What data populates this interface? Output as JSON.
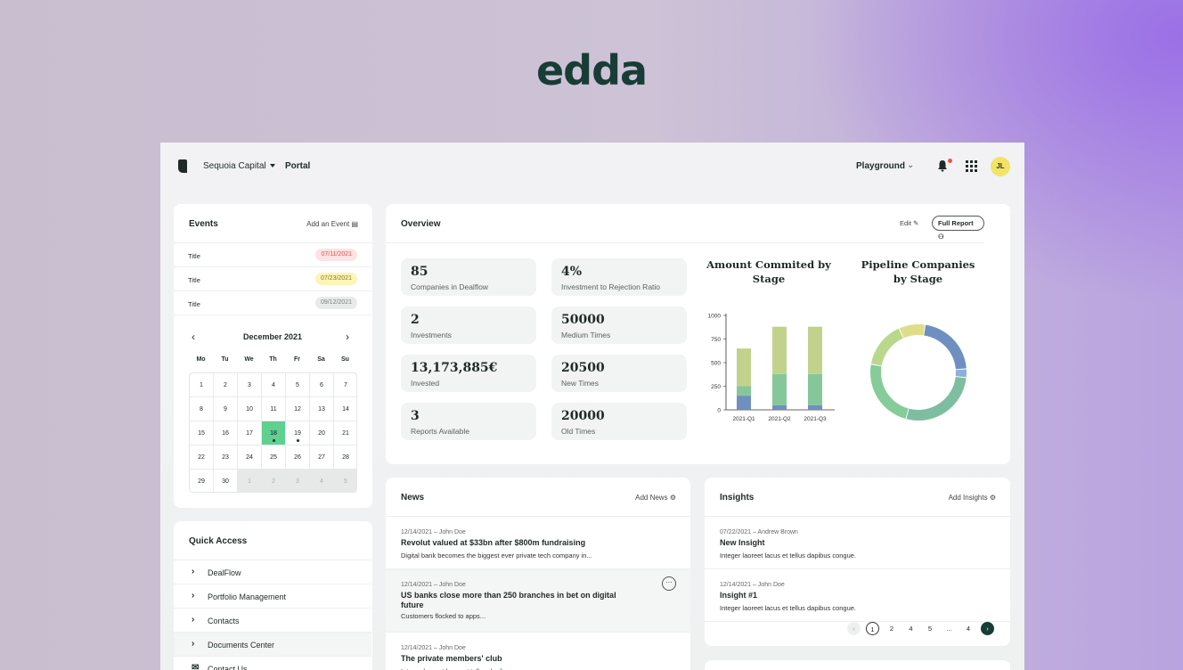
{
  "brand": "edda",
  "topbar": {
    "org": "Sequoia Capital",
    "portal": "Portal",
    "workspace": "Playground",
    "avatar": "JL"
  },
  "events": {
    "title": "Events",
    "add_label": "Add an Event",
    "items": [
      {
        "title": "Title",
        "date": "07/11/2021",
        "color": "#fde3e3",
        "text_color": "#d9534f"
      },
      {
        "title": "Title",
        "date": "07/23/2021",
        "color": "#fbf5b8",
        "text_color": "#8a7a12"
      },
      {
        "title": "Title",
        "date": "09/12/2021",
        "color": "#e8ebea",
        "text_color": "#7b8380"
      }
    ],
    "calendar": {
      "month": "December 2021",
      "weekdays": [
        "Mo",
        "Tu",
        "We",
        "Th",
        "Fr",
        "Sa",
        "Su"
      ],
      "weeks": [
        [
          "1",
          "2",
          "3",
          "4",
          "5",
          "6",
          "7"
        ],
        [
          "8",
          "9",
          "10",
          "11",
          "12",
          "13",
          "14"
        ],
        [
          "15",
          "16",
          "17",
          "18",
          "19",
          "20",
          "21"
        ],
        [
          "22",
          "23",
          "24",
          "25",
          "26",
          "27",
          "28"
        ],
        [
          "29",
          "30",
          "1",
          "2",
          "3",
          "4",
          "5"
        ]
      ],
      "selected": "18"
    }
  },
  "quick_access": {
    "title": "Quick Access",
    "items": [
      "DealFlow",
      "Portfolio Management",
      "Contacts",
      "Documents Center",
      "Contact Us"
    ]
  },
  "overview": {
    "title": "Overview",
    "edit_label": "Edit",
    "report_label": "Full Report",
    "stats": [
      {
        "value": "85",
        "label": "Companies in Dealflow"
      },
      {
        "value": "2",
        "label": "Investments"
      },
      {
        "value": "13,173,885€",
        "label": "Invested"
      },
      {
        "value": "3",
        "label": "Reports Available"
      },
      {
        "value": "4%",
        "label": "Investment to Rejection Ratio"
      },
      {
        "value": "50000",
        "label": "Medium Times"
      },
      {
        "value": "20500",
        "label": "New Times"
      },
      {
        "value": "20000",
        "label": "Old Times"
      }
    ]
  },
  "chart_data": [
    {
      "type": "bar",
      "title": "Amount Commited by Stage",
      "categories": [
        "2021-Q1",
        "2021-Q2",
        "2021-Q3"
      ],
      "stacked": true,
      "ylim": [
        0,
        1000
      ],
      "yticks": [
        0,
        250,
        500,
        750,
        1000
      ],
      "series": [
        {
          "values": [
            150,
            50,
            50
          ],
          "color": "#6f8fc0"
        },
        {
          "values": [
            100,
            330,
            330
          ],
          "color": "#86c79a"
        },
        {
          "values": [
            400,
            500,
            500
          ],
          "color": "#c2d28c"
        }
      ]
    },
    {
      "type": "pie",
      "title": "Pipeline Companies by Stage",
      "values": [
        22,
        3,
        28,
        24,
        16,
        9
      ],
      "colors": [
        "#6f8fc0",
        "#8fb0d6",
        "#7dbea0",
        "#86cc98",
        "#b9d88c",
        "#dede8a"
      ]
    }
  ],
  "news": {
    "title": "News",
    "add_label": "Add News",
    "items": [
      {
        "meta": "12/14/2021  –  John Doe",
        "title": "Revolut valued at $33bn after $800m fundraising",
        "body": "Digital bank becomes the biggest ever private tech company in..."
      },
      {
        "meta": "12/14/2021  –  John Doe",
        "title": "US banks close more than 250 branches in bet on digital future",
        "body": "Customers flocked to apps..."
      },
      {
        "meta": "12/14/2021  –  John Doe",
        "title": "The private members' club",
        "body": "Integer laoreet lacus et tellus dapibus congue."
      }
    ]
  },
  "insights": {
    "title": "Insights",
    "add_label": "Add Insights",
    "items": [
      {
        "meta": "07/22/2021  –  Andrew Brown",
        "title": "New Insight",
        "body": "Integer laoreet lacus et tellus dapibus congue."
      },
      {
        "meta": "12/14/2021  –  John Doe",
        "title": "Insight #1",
        "body": "Integer laoreet lacus et tellus dapibus congue."
      }
    ],
    "pagination": [
      "1",
      "2",
      "4",
      "5",
      "...",
      "4"
    ]
  }
}
